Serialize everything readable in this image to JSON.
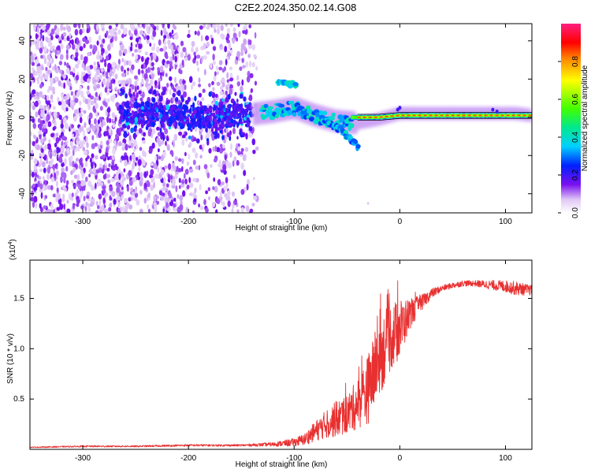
{
  "title": "C2E2.2024.350.02.14.G08",
  "chart_data": [
    {
      "type": "heatmap",
      "xlabel": "Height of straight line (km)",
      "ylabel": "Frequency (Hz)",
      "xlim": [
        -350,
        125
      ],
      "ylim": [
        -50,
        49
      ],
      "xticks": [
        -300,
        -200,
        -100,
        0,
        100
      ],
      "xtick_labels": [
        "-300",
        "-200",
        "-100",
        "0",
        "100"
      ],
      "yticks": [
        -40,
        -20,
        0,
        20,
        40
      ],
      "ytick_labels": [
        "-40",
        "-20",
        "0",
        "20",
        "40"
      ],
      "colorbar": {
        "label": "Normalized spectral amplitude",
        "range": [
          0,
          1
        ],
        "ticks": [
          0.0,
          0.2,
          0.4,
          0.6,
          0.8
        ],
        "tick_labels": [
          "0.0",
          "0.2",
          "0.4",
          "0.6",
          "0.8"
        ]
      },
      "features": [
        {
          "name": "noise-field",
          "x_range": [
            -350,
            -140
          ],
          "amplitude": 0.1
        },
        {
          "name": "main-trace",
          "points": [
            [
              -250,
              2
            ],
            [
              -220,
              1
            ],
            [
              -200,
              0
            ],
            [
              -150,
              1
            ],
            [
              -120,
              3
            ],
            [
              -100,
              5
            ],
            [
              -80,
              1
            ],
            [
              -60,
              -2
            ],
            [
              -40,
              -3
            ],
            [
              -20,
              -1
            ],
            [
              0,
              2
            ],
            [
              40,
              2
            ],
            [
              80,
              2
            ],
            [
              110,
              2
            ],
            [
              125,
              1
            ]
          ],
          "amplitude": 0.45
        },
        {
          "name": "upper-branch",
          "points": [
            [
              -110,
              18
            ],
            [
              -100,
              17
            ]
          ],
          "amplitude": 0.45
        },
        {
          "name": "lower-branch",
          "points": [
            [
              -70,
              -2
            ],
            [
              -55,
              -7
            ],
            [
              -40,
              -15
            ]
          ],
          "amplitude": 0.4
        },
        {
          "name": "carrier-core",
          "points": [
            [
              -40,
              0
            ],
            [
              -20,
              0
            ],
            [
              0,
              1
            ],
            [
              50,
              1
            ],
            [
              100,
              1
            ],
            [
              125,
              1
            ]
          ],
          "amplitude": 0.95
        }
      ]
    },
    {
      "type": "line",
      "xlabel": "Height of straight line (km)",
      "ylabel": "SNR (10 * v/v)",
      "y_multiplier": "(x10",
      "y_multiplier_exp": "4",
      "xlim": [
        -350,
        125
      ],
      "ylim": [
        0,
        1.88
      ],
      "xticks": [
        -300,
        -200,
        -100,
        0,
        100
      ],
      "xtick_labels": [
        "-300",
        "-200",
        "-100",
        "0",
        "100"
      ],
      "yticks": [
        0.5,
        1.0,
        1.5
      ],
      "ytick_labels": [
        "0.5",
        "1.0",
        "1.5"
      ],
      "series": [
        {
          "name": "SNR",
          "color": "#e83030",
          "x": [
            -350,
            -300,
            -250,
            -200,
            -150,
            -120,
            -100,
            -90,
            -80,
            -70,
            -60,
            -50,
            -40,
            -30,
            -20,
            -10,
            0,
            10,
            20,
            30,
            40,
            50,
            60,
            70,
            80,
            90,
            100,
            110,
            125
          ],
          "y": [
            0.02,
            0.03,
            0.03,
            0.04,
            0.04,
            0.05,
            0.07,
            0.1,
            0.18,
            0.25,
            0.3,
            0.35,
            0.45,
            0.6,
            0.9,
            1.1,
            1.2,
            1.35,
            1.45,
            1.55,
            1.6,
            1.63,
            1.65,
            1.65,
            1.64,
            1.63,
            1.62,
            1.6,
            1.58
          ],
          "noise": [
            0.005,
            0.008,
            0.008,
            0.01,
            0.01,
            0.02,
            0.04,
            0.06,
            0.1,
            0.14,
            0.18,
            0.2,
            0.25,
            0.35,
            0.4,
            0.35,
            0.3,
            0.15,
            0.08,
            0.05,
            0.03,
            0.03,
            0.03,
            0.03,
            0.04,
            0.05,
            0.06,
            0.07,
            0.05
          ]
        }
      ]
    }
  ]
}
